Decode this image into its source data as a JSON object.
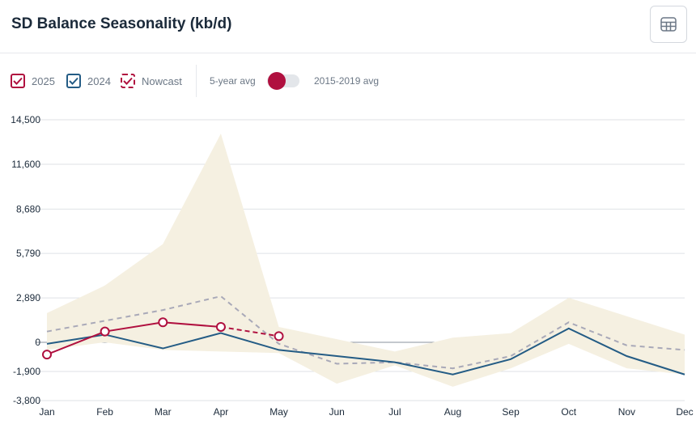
{
  "header": {
    "title": "SD Balance Seasonality (kb/d)",
    "table_icon": "table-icon"
  },
  "legend": {
    "items": [
      {
        "label": "2025",
        "color": "#b0103f",
        "style": "solid"
      },
      {
        "label": "2024",
        "color": "#245c85",
        "style": "solid"
      },
      {
        "label": "Nowcast",
        "color": "#b0103f",
        "style": "dashed"
      }
    ],
    "toggle": {
      "left_label": "5-year avg",
      "right_label": "2015-2019 avg",
      "selected": "5-year avg"
    }
  },
  "colors": {
    "band": "#f5f0e1",
    "avg_line": "#a9a9b8",
    "grid": "#dfe2e6"
  },
  "chart_data": {
    "type": "line",
    "categories": [
      "Jan",
      "Feb",
      "Mar",
      "Apr",
      "May",
      "Jun",
      "Jul",
      "Aug",
      "Sep",
      "Oct",
      "Nov",
      "Dec"
    ],
    "y_ticks": [
      "14,500",
      "11,600",
      "8,680",
      "5,790",
      "2,890",
      "0",
      "-1,900",
      "-3,800"
    ],
    "y_tick_values": [
      14500,
      11600,
      8680,
      5790,
      2890,
      0,
      -1900,
      -3800
    ],
    "ylim": [
      -3800,
      14500
    ],
    "grid": true,
    "range_band": {
      "upper": [
        1900,
        3700,
        6400,
        13600,
        1000,
        200,
        -600,
        300,
        600,
        2900,
        1700,
        500
      ],
      "lower": [
        -500,
        0,
        -500,
        -600,
        -700,
        -2700,
        -1500,
        -2900,
        -1700,
        -100,
        -1700,
        -2100
      ]
    },
    "series": [
      {
        "name": "2025",
        "values": [
          -800,
          700,
          1300,
          1000,
          null,
          null,
          null,
          null,
          null,
          null,
          null,
          null
        ]
      },
      {
        "name": "Nowcast",
        "values": [
          null,
          null,
          null,
          1000,
          400,
          null,
          null,
          null,
          null,
          null,
          null,
          null
        ]
      },
      {
        "name": "2024",
        "values": [
          -100,
          500,
          -400,
          600,
          -500,
          -900,
          -1300,
          -2100,
          -1100,
          900,
          -900,
          -2100
        ]
      },
      {
        "name": "5-year avg",
        "values": [
          700,
          1400,
          2100,
          3000,
          -100,
          -1400,
          -1300,
          -1700,
          -900,
          1300,
          -200,
          -500
        ]
      }
    ]
  }
}
